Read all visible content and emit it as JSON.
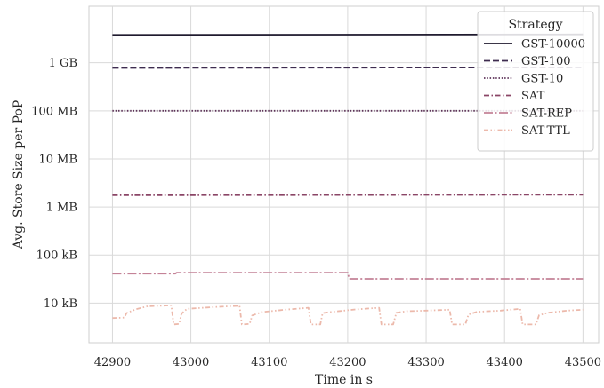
{
  "chart_data": {
    "type": "line",
    "xlabel": "Time in s",
    "ylabel": "Avg. Store Size per PoP",
    "xlim": [
      42870,
      43520
    ],
    "ylim_bytes": [
      1500.0,
      15000000000.0
    ],
    "y_scale": "log",
    "grid": true,
    "x_ticks": [
      42900,
      43000,
      43100,
      43200,
      43300,
      43400,
      43500
    ],
    "y_ticks": [
      {
        "value": 10000.0,
        "label": "10 kB"
      },
      {
        "value": 100000.0,
        "label": "100 kB"
      },
      {
        "value": 1000000.0,
        "label": "1 MB"
      },
      {
        "value": 10000000.0,
        "label": "10 MB"
      },
      {
        "value": 100000000.0,
        "label": "100 MB"
      },
      {
        "value": 1000000000.0,
        "label": "1 GB"
      }
    ],
    "legend": {
      "title": "Strategy",
      "placement": "top-right"
    },
    "series": [
      {
        "name": "GST-10000",
        "color": "#1f1a2e",
        "dash": "solid",
        "points": [
          [
            42900,
            3800000000.0
          ],
          [
            43500,
            3900000000.0
          ]
        ]
      },
      {
        "name": "GST-100",
        "color": "#3d2b4f",
        "dash": "dashed",
        "points": [
          [
            42900,
            780000000.0
          ],
          [
            43500,
            800000000.0
          ]
        ]
      },
      {
        "name": "GST-10",
        "color": "#5e3459",
        "dash": "dotted",
        "points": [
          [
            42900,
            100000000.0
          ],
          [
            43500,
            100000000.0
          ]
        ]
      },
      {
        "name": "SAT",
        "color": "#8a4566",
        "dash": "dashdot",
        "points": [
          [
            42900,
            1750000.0
          ],
          [
            43500,
            1800000.0
          ]
        ]
      },
      {
        "name": "SAT-REP",
        "color": "#c48297",
        "dash": "longdashdot",
        "points": [
          [
            42900,
            41000.0
          ],
          [
            42980,
            41000.0
          ],
          [
            42982,
            43000.0
          ],
          [
            43200,
            43000.0
          ],
          [
            43202,
            32000.0
          ],
          [
            43500,
            32000.0
          ]
        ]
      },
      {
        "name": "SAT-TTL",
        "color": "#ecb9ab",
        "dash": "loosedashdot",
        "points": [
          [
            42900,
            4900.0
          ],
          [
            42915,
            5000.0
          ],
          [
            42918,
            6200.0
          ],
          [
            42930,
            7500.0
          ],
          [
            42945,
            8600.0
          ],
          [
            42975,
            9000.0
          ],
          [
            42978,
            3600.0
          ],
          [
            42985,
            3700.0
          ],
          [
            42988,
            6000.0
          ],
          [
            42995,
            7600.0
          ],
          [
            43030,
            8300.0
          ],
          [
            43062,
            8800.0
          ],
          [
            43065,
            3600.0
          ],
          [
            43075,
            3700.0
          ],
          [
            43078,
            5500.0
          ],
          [
            43090,
            6500.0
          ],
          [
            43120,
            7300.0
          ],
          [
            43150,
            8000.0
          ],
          [
            43153,
            3600.0
          ],
          [
            43165,
            3600.0
          ],
          [
            43168,
            6200.0
          ],
          [
            43180,
            6600.0
          ],
          [
            43210,
            7400.0
          ],
          [
            43240,
            8000.0
          ],
          [
            43243,
            3600.0
          ],
          [
            43258,
            3600.0
          ],
          [
            43262,
            6300.0
          ],
          [
            43275,
            6800.0
          ],
          [
            43300,
            7000.0
          ],
          [
            43330,
            7300.0
          ],
          [
            43333,
            3600.0
          ],
          [
            43350,
            3600.0
          ],
          [
            43354,
            5800.0
          ],
          [
            43365,
            6600.0
          ],
          [
            43395,
            7000.0
          ],
          [
            43420,
            7600.0
          ],
          [
            43423,
            3600.0
          ],
          [
            43440,
            3600.0
          ],
          [
            43444,
            5600.0
          ],
          [
            43455,
            6300.0
          ],
          [
            43480,
            7000.0
          ],
          [
            43500,
            7300.0
          ]
        ]
      }
    ]
  }
}
